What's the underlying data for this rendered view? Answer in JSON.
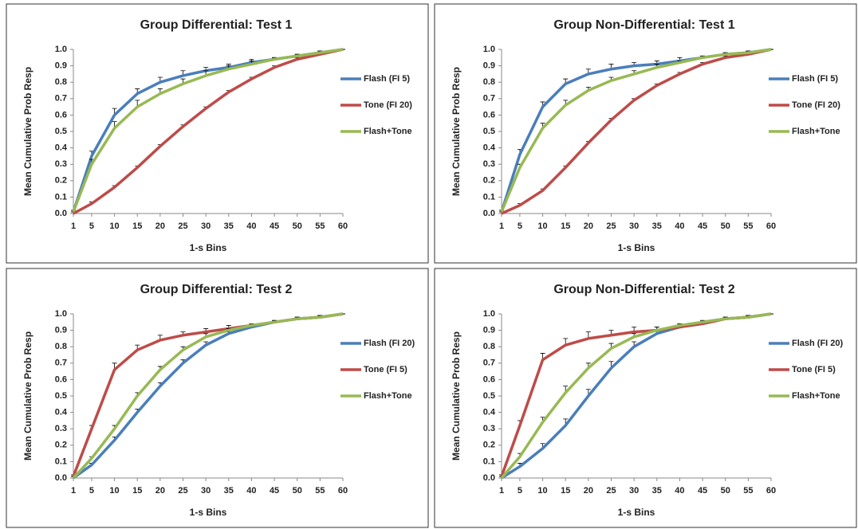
{
  "chart_data": [
    {
      "type": "line",
      "title": "Group Differential: Test 1",
      "x_label": "1-s Bins",
      "y_label": "Mean Cumulative Prob Resp",
      "x": [
        1,
        5,
        10,
        15,
        20,
        25,
        30,
        35,
        40,
        45,
        50,
        55,
        60
      ],
      "xlim": [
        1,
        60
      ],
      "xticks": [
        1,
        5,
        10,
        15,
        20,
        25,
        30,
        35,
        40,
        45,
        50,
        55,
        60
      ],
      "ylim": [
        0,
        1
      ],
      "yticks": [
        {
          "value": 0,
          "label": "0.0"
        },
        0.1,
        0.2,
        0.3,
        0.4,
        0.5,
        0.6,
        0.7,
        0.8,
        0.9,
        {
          "value": 1,
          "label": "1.0"
        }
      ],
      "grid": false,
      "legend": "right",
      "series": [
        {
          "name": "Flash (FI 5)",
          "color": "#4a7ebb",
          "values": [
            0.01,
            0.35,
            0.6,
            0.73,
            0.8,
            0.84,
            0.87,
            0.89,
            0.92,
            0.94,
            0.96,
            0.98,
            1.0
          ],
          "errors": [
            0.01,
            0.03,
            0.04,
            0.03,
            0.03,
            0.03,
            0.02,
            0.02,
            0.02,
            0.01,
            0.01,
            0.01,
            0
          ]
        },
        {
          "name": "Tone (FI 20)",
          "color": "#be4b48",
          "values": [
            0.0,
            0.06,
            0.16,
            0.28,
            0.41,
            0.53,
            0.64,
            0.74,
            0.82,
            0.89,
            0.94,
            0.97,
            1.0
          ],
          "errors": [
            0.01,
            0.01,
            0.01,
            0.01,
            0.01,
            0.01,
            0.01,
            0.01,
            0.01,
            0.01,
            0.01,
            0.01,
            0
          ]
        },
        {
          "name": "Flash+Tone",
          "color": "#98b954",
          "values": [
            0.01,
            0.3,
            0.52,
            0.65,
            0.73,
            0.79,
            0.84,
            0.88,
            0.91,
            0.94,
            0.96,
            0.98,
            1.0
          ],
          "errors": [
            0.01,
            0.03,
            0.04,
            0.04,
            0.03,
            0.03,
            0.03,
            0.02,
            0.02,
            0.01,
            0.01,
            0.01,
            0
          ]
        }
      ]
    },
    {
      "type": "line",
      "title": "Group Non-Differential: Test 1",
      "x_label": "1-s Bins",
      "y_label": "Mean Cumulative Prob Resp",
      "x": [
        1,
        5,
        10,
        15,
        20,
        25,
        30,
        35,
        40,
        45,
        50,
        55,
        60
      ],
      "xlim": [
        1,
        60
      ],
      "xticks": [
        1,
        5,
        10,
        15,
        20,
        25,
        30,
        35,
        40,
        45,
        50,
        55,
        60
      ],
      "ylim": [
        0,
        1
      ],
      "yticks": [
        {
          "value": 0,
          "label": "0.0"
        },
        0.1,
        0.2,
        0.3,
        0.4,
        0.5,
        0.6,
        0.7,
        0.8,
        0.9,
        {
          "value": 1,
          "label": "1.0"
        }
      ],
      "grid": false,
      "legend": "right",
      "series": [
        {
          "name": "Flash (FI 5)",
          "color": "#4a7ebb",
          "values": [
            0.01,
            0.36,
            0.65,
            0.79,
            0.85,
            0.88,
            0.9,
            0.91,
            0.93,
            0.95,
            0.97,
            0.98,
            1.0
          ],
          "errors": [
            0.01,
            0.03,
            0.03,
            0.03,
            0.03,
            0.03,
            0.02,
            0.02,
            0.02,
            0.01,
            0.01,
            0.01,
            0
          ]
        },
        {
          "name": "Tone (FI 20)",
          "color": "#be4b48",
          "values": [
            0.0,
            0.05,
            0.14,
            0.28,
            0.43,
            0.57,
            0.69,
            0.78,
            0.85,
            0.91,
            0.95,
            0.97,
            1.0
          ],
          "errors": [
            0.01,
            0.01,
            0.01,
            0.01,
            0.01,
            0.01,
            0.01,
            0.01,
            0.01,
            0.01,
            0.01,
            0.01,
            0
          ]
        },
        {
          "name": "Flash+Tone",
          "color": "#98b954",
          "values": [
            0.01,
            0.28,
            0.52,
            0.66,
            0.75,
            0.81,
            0.85,
            0.89,
            0.92,
            0.95,
            0.97,
            0.98,
            1.0
          ],
          "errors": [
            0.01,
            0.02,
            0.03,
            0.03,
            0.02,
            0.02,
            0.02,
            0.02,
            0.01,
            0.01,
            0.01,
            0.01,
            0
          ]
        }
      ]
    },
    {
      "type": "line",
      "title": "Group Differential: Test 2",
      "x_label": "1-s Bins",
      "y_label": "Mean Cumulative Prob Resp",
      "x": [
        1,
        5,
        10,
        15,
        20,
        25,
        30,
        35,
        40,
        45,
        50,
        55,
        60
      ],
      "xlim": [
        1,
        60
      ],
      "xticks": [
        1,
        5,
        10,
        15,
        20,
        25,
        30,
        35,
        40,
        45,
        50,
        55,
        60
      ],
      "ylim": [
        0,
        1
      ],
      "yticks": [
        {
          "value": 0,
          "label": "0.0"
        },
        0.1,
        0.2,
        0.3,
        0.4,
        0.5,
        0.6,
        0.7,
        0.8,
        0.9,
        {
          "value": 1,
          "label": "1.0"
        }
      ],
      "grid": false,
      "legend": "right",
      "series": [
        {
          "name": "Flash (FI 20)",
          "color": "#4a7ebb",
          "values": [
            0.0,
            0.08,
            0.23,
            0.4,
            0.56,
            0.7,
            0.81,
            0.88,
            0.92,
            0.95,
            0.97,
            0.98,
            1.0
          ],
          "errors": [
            0.01,
            0.01,
            0.02,
            0.02,
            0.02,
            0.02,
            0.02,
            0.01,
            0.01,
            0.01,
            0.01,
            0.01,
            0
          ]
        },
        {
          "name": "Tone (FI 5)",
          "color": "#be4b48",
          "values": [
            0.01,
            0.3,
            0.66,
            0.78,
            0.84,
            0.87,
            0.89,
            0.91,
            0.93,
            0.95,
            0.97,
            0.98,
            1.0
          ],
          "errors": [
            0.01,
            0.02,
            0.04,
            0.03,
            0.03,
            0.02,
            0.02,
            0.02,
            0.01,
            0.01,
            0.01,
            0.01,
            0
          ]
        },
        {
          "name": "Flash+Tone",
          "color": "#98b954",
          "values": [
            0.0,
            0.12,
            0.3,
            0.5,
            0.66,
            0.78,
            0.86,
            0.9,
            0.93,
            0.95,
            0.97,
            0.98,
            1.0
          ],
          "errors": [
            0.01,
            0.01,
            0.02,
            0.02,
            0.02,
            0.02,
            0.02,
            0.01,
            0.01,
            0.01,
            0.01,
            0.01,
            0
          ]
        }
      ]
    },
    {
      "type": "line",
      "title": "Group Non-Differential: Test 2",
      "x_label": "1-s Bins",
      "y_label": "Mean Cumulative Prob Resp",
      "x": [
        1,
        5,
        10,
        15,
        20,
        25,
        30,
        35,
        40,
        45,
        50,
        55,
        60
      ],
      "xlim": [
        1,
        60
      ],
      "xticks": [
        1,
        5,
        10,
        15,
        20,
        25,
        30,
        35,
        40,
        45,
        50,
        55,
        60
      ],
      "ylim": [
        0,
        1
      ],
      "yticks": [
        {
          "value": 0,
          "label": "0.0"
        },
        0.1,
        0.2,
        0.3,
        0.4,
        0.5,
        0.6,
        0.7,
        0.8,
        0.9,
        {
          "value": 1,
          "label": "1.0"
        }
      ],
      "grid": false,
      "legend": "right",
      "series": [
        {
          "name": "Flash (FI 20)",
          "color": "#4a7ebb",
          "values": [
            0.0,
            0.07,
            0.18,
            0.32,
            0.5,
            0.67,
            0.8,
            0.88,
            0.92,
            0.95,
            0.97,
            0.98,
            1.0
          ],
          "errors": [
            0.01,
            0.02,
            0.03,
            0.04,
            0.04,
            0.04,
            0.03,
            0.02,
            0.02,
            0.01,
            0.01,
            0.01,
            0
          ]
        },
        {
          "name": "Tone (FI 5)",
          "color": "#be4b48",
          "values": [
            0.01,
            0.32,
            0.72,
            0.81,
            0.85,
            0.87,
            0.89,
            0.9,
            0.92,
            0.94,
            0.97,
            0.98,
            1.0
          ],
          "errors": [
            0.01,
            0.03,
            0.04,
            0.04,
            0.04,
            0.03,
            0.03,
            0.02,
            0.02,
            0.01,
            0.01,
            0.01,
            0
          ]
        },
        {
          "name": "Flash+Tone",
          "color": "#98b954",
          "values": [
            0.0,
            0.13,
            0.34,
            0.52,
            0.67,
            0.79,
            0.86,
            0.9,
            0.93,
            0.95,
            0.97,
            0.98,
            1.0
          ],
          "errors": [
            0.01,
            0.02,
            0.03,
            0.04,
            0.03,
            0.03,
            0.02,
            0.02,
            0.01,
            0.01,
            0.01,
            0.01,
            0
          ]
        }
      ]
    }
  ]
}
